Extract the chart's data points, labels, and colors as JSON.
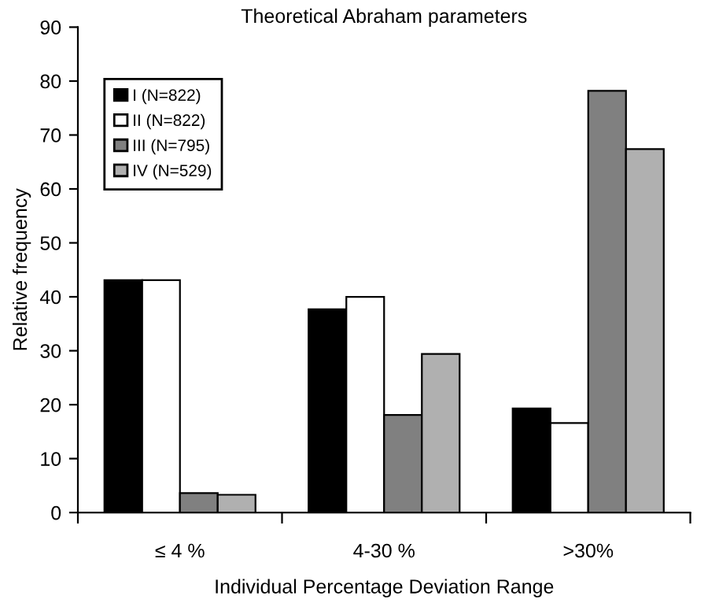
{
  "chart_data": {
    "type": "bar",
    "title": "Theoretical Abraham parameters",
    "xlabel": "Individual Percentage Deviation Range",
    "ylabel": "Relative frequency",
    "categories": [
      "≤ 4 %",
      "4-30 %",
      ">30%"
    ],
    "series": [
      {
        "name": "I (N=822)",
        "color": "#000000",
        "values": [
          43.1,
          37.7,
          19.3
        ]
      },
      {
        "name": "II (N=822)",
        "color": "#ffffff",
        "values": [
          43.1,
          40.0,
          16.6
        ]
      },
      {
        "name": "III (N=795)",
        "color": "#808080",
        "values": [
          3.6,
          18.1,
          78.2
        ]
      },
      {
        "name": "IV (N=529)",
        "color": "#b0b0b0",
        "values": [
          3.3,
          29.4,
          67.4
        ]
      }
    ],
    "ylim": [
      0,
      90
    ],
    "yticks": [
      0,
      10,
      20,
      30,
      40,
      50,
      60,
      70,
      80,
      90
    ],
    "grid": false,
    "legend": "top left"
  }
}
